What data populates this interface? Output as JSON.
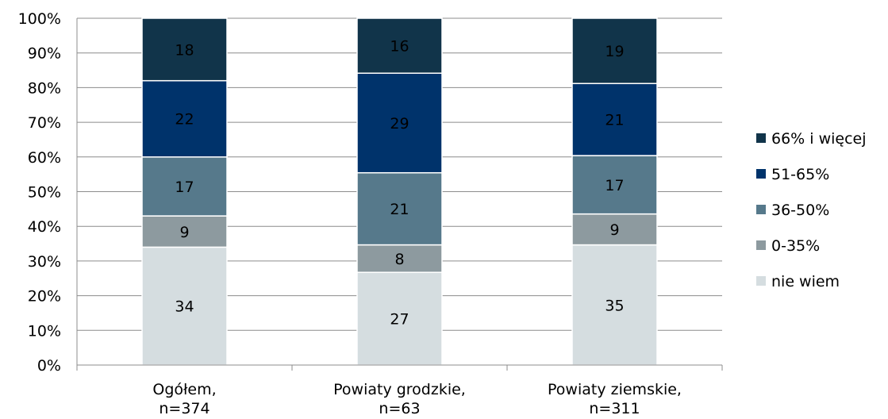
{
  "chart_data": {
    "type": "bar",
    "stacked": true,
    "categories": [
      [
        "Ogółem,",
        "n=374"
      ],
      [
        "Powiaty grodzkie,",
        "n=63"
      ],
      [
        "Powiaty ziemskie,",
        "n=311"
      ]
    ],
    "series": [
      {
        "name": "nie wiem",
        "values": [
          34,
          27,
          35
        ],
        "color": "#d5dde0",
        "label_color": "#000000"
      },
      {
        "name": "0-35%",
        "values": [
          9,
          8,
          9
        ],
        "color": "#8d9a9f",
        "label_color": "#000000"
      },
      {
        "name": "36-50%",
        "values": [
          17,
          21,
          17
        ],
        "color": "#56798b",
        "label_color": "#000000"
      },
      {
        "name": "51-65%",
        "values": [
          22,
          29,
          21
        ],
        "color": "#00336b",
        "label_color": "#000000"
      },
      {
        "name": "66% i więcej",
        "values": [
          18,
          16,
          19
        ],
        "color": "#11344a",
        "label_color": "#000000"
      }
    ],
    "y_ticks": [
      "0%",
      "10%",
      "20%",
      "30%",
      "40%",
      "50%",
      "60%",
      "70%",
      "80%",
      "90%",
      "100%"
    ],
    "ylim": [
      0,
      100
    ],
    "grid": true,
    "legend_position": "right",
    "legend_order": [
      "66% i więcej",
      "51-65%",
      "36-50%",
      "0-35%",
      "nie wiem"
    ]
  }
}
